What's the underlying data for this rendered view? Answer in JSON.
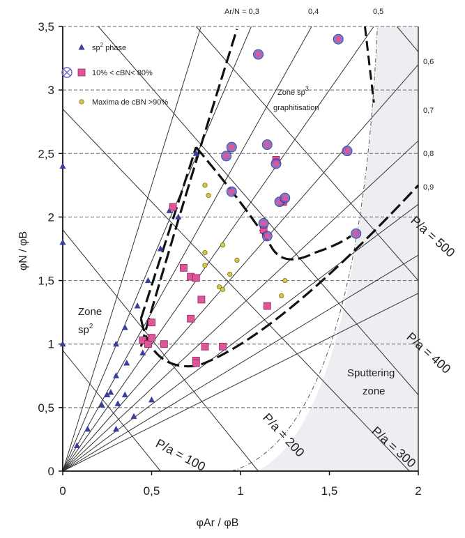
{
  "chart_data": {
    "type": "scatter",
    "xlabel": "φAr / φB",
    "ylabel": "φN / φB",
    "xlim": [
      0,
      2
    ],
    "ylim": [
      0,
      3.5
    ],
    "x_ticks": [
      0,
      0.5,
      1,
      1.5,
      2
    ],
    "x_tick_labels": [
      "0",
      "0,5",
      "1",
      "1,5",
      "2"
    ],
    "y_ticks": [
      0,
      0.5,
      1,
      1.5,
      2,
      2.5,
      3,
      3.5
    ],
    "y_tick_labels": [
      "0",
      "0,5",
      "1",
      "1,5",
      "2",
      "2,5",
      "3",
      "3,5"
    ],
    "grid": "dashed horizontal",
    "legend_position": "top-left",
    "colors": {
      "triangle": "#3a3f9c",
      "square": "#e0559a",
      "circle": "#d6c84c",
      "ring": "#6a63c7",
      "shade": "#eceef2"
    },
    "series": [
      {
        "name": "sp2 phase",
        "marker": "triangle",
        "points": [
          [
            0,
            2.4
          ],
          [
            0,
            1.8
          ],
          [
            0,
            1.0
          ],
          [
            0.08,
            0.2
          ],
          [
            0.14,
            0.33
          ],
          [
            0.22,
            0.52
          ],
          [
            0.25,
            0.6
          ],
          [
            0.27,
            0.62
          ],
          [
            0.3,
            0.75
          ],
          [
            0.31,
            0.53
          ],
          [
            0.35,
            0.6
          ],
          [
            0.36,
            0.85
          ],
          [
            0.3,
            1.0
          ],
          [
            0.35,
            1.13
          ],
          [
            0.42,
            1.3
          ],
          [
            0.45,
            0.93
          ],
          [
            0.48,
            1.5
          ],
          [
            0.55,
            1.75
          ],
          [
            0.6,
            2.05
          ],
          [
            0.65,
            2.0
          ],
          [
            0.75,
            2.5
          ],
          [
            0.5,
            0.56
          ],
          [
            0.3,
            0.33
          ],
          [
            0.4,
            0.43
          ]
        ]
      },
      {
        "name": "10% < cBN< 80%",
        "marker": "square",
        "points": [
          [
            0.45,
            1.03
          ],
          [
            0.5,
            1.17
          ],
          [
            0.48,
            1.0
          ],
          [
            0.5,
            1.05
          ],
          [
            0.57,
            1.0
          ],
          [
            0.62,
            2.08
          ],
          [
            0.68,
            1.6
          ],
          [
            0.72,
            1.53
          ],
          [
            0.75,
            1.52
          ],
          [
            0.78,
            1.35
          ],
          [
            0.72,
            1.2
          ],
          [
            0.75,
            0.87
          ],
          [
            0.8,
            0.98
          ],
          [
            0.75,
            0.85
          ],
          [
            0.9,
            0.98
          ],
          [
            1.15,
            1.3
          ],
          [
            1.2,
            2.45
          ],
          [
            1.24,
            2.12
          ],
          [
            1.13,
            1.9
          ]
        ]
      },
      {
        "name": "10% < cBN< 80% (ringed)",
        "marker": "ringed-circle",
        "points": [
          [
            0.92,
            2.48
          ],
          [
            0.95,
            2.55
          ],
          [
            0.95,
            2.2
          ],
          [
            1.1,
            3.28
          ],
          [
            1.15,
            2.57
          ],
          [
            1.2,
            2.42
          ],
          [
            1.22,
            2.12
          ],
          [
            1.25,
            2.15
          ],
          [
            1.13,
            1.95
          ],
          [
            1.15,
            1.85
          ],
          [
            1.55,
            3.4
          ],
          [
            1.6,
            2.52
          ],
          [
            1.65,
            1.87
          ]
        ]
      },
      {
        "name": "Maxima de cBN >90%",
        "marker": "circle",
        "points": [
          [
            0.8,
            2.25
          ],
          [
            0.82,
            2.17
          ],
          [
            0.8,
            1.72
          ],
          [
            0.8,
            1.62
          ],
          [
            0.9,
            1.78
          ],
          [
            0.94,
            1.55
          ],
          [
            0.98,
            1.66
          ],
          [
            0.88,
            1.45
          ],
          [
            0.9,
            1.43
          ],
          [
            1.25,
            1.5
          ],
          [
            1.23,
            1.38
          ]
        ]
      }
    ],
    "legend": [
      {
        "marker": "triangle",
        "label_main": "sp",
        "label_sup": "2",
        "label_rest": " phase"
      },
      {
        "marker": "square",
        "label_main": "10% < cBN< 80%",
        "label_sup": "",
        "label_rest": ""
      },
      {
        "marker": "circle",
        "label_main": "Maxima de cBN >90%",
        "label_sup": "",
        "label_rest": ""
      }
    ],
    "ratio_lines": {
      "header_prefix": "Ar/N = ",
      "values": [
        0.3,
        0.4,
        0.5,
        0.6,
        0.7,
        0.8,
        0.9
      ],
      "labels": [
        "0,3",
        "0,4",
        "0,5",
        "0,6",
        "0,7",
        "0,8",
        "0,9"
      ]
    },
    "pressure_lines": {
      "values": [
        100,
        200,
        300,
        400,
        500
      ],
      "labels": [
        "P/a = 100",
        "P/a = 200",
        "P/a = 300",
        "P/a = 400",
        "P/a = 500"
      ]
    },
    "zone_labels": {
      "sp2_line1": "Zone",
      "sp2_line2": "sp",
      "sp2_sup": "2",
      "sp3_line1": "Zone sp",
      "sp3_sup": "3",
      "sp3_line2": "graphitisation",
      "sputter_line1": "Sputtering",
      "sputter_line2": "zone"
    }
  }
}
